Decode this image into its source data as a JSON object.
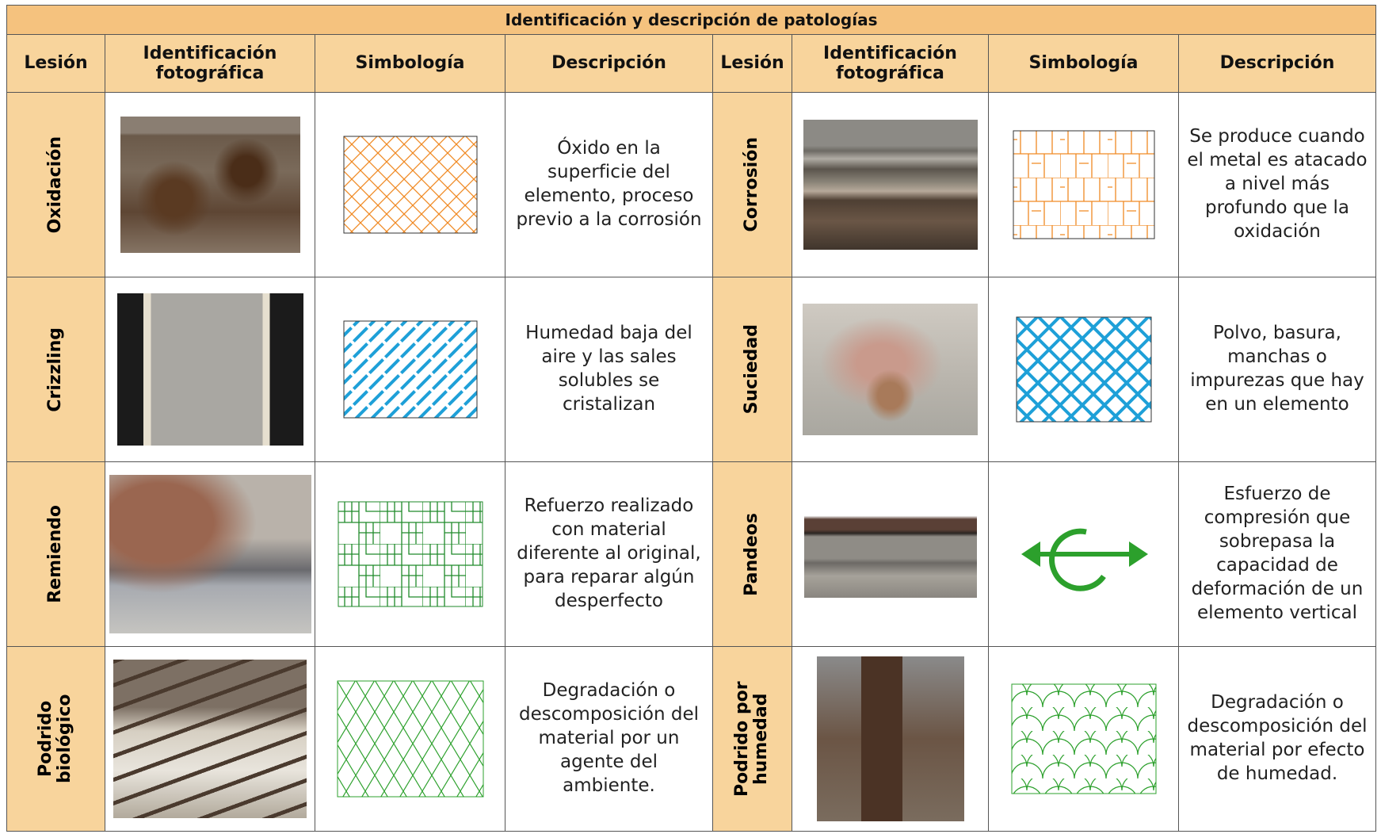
{
  "table": {
    "title": "Identificación y descripción de patologías",
    "headers": [
      "Lesión",
      "Identificación fotográfica",
      "Simbología",
      "Descripción",
      "Lesión",
      "Identificación fotográfica",
      "Simbología",
      "Descripción"
    ],
    "rows": [
      [
        {
          "lesion": "Oxidación",
          "description": "Óxido en la superficie del elemento, proceso previo a la corrosión"
        },
        {
          "lesion": "Corrosión",
          "description": "Se produce cuando el metal es atacado a nivel más profundo que la oxidación"
        }
      ],
      [
        {
          "lesion": "Crizzling",
          "description": "Humedad baja del aire y las sales solubles se cristalizan"
        },
        {
          "lesion": "Suciedad",
          "description": "Polvo, basura, manchas o impurezas que hay en un elemento"
        }
      ],
      [
        {
          "lesion": "Remiendo",
          "description": "Refuerzo realizado con material diferente al original, para reparar algún desperfecto"
        },
        {
          "lesion": "Pandeos",
          "description": "Esfuerzo de compresión que sobrepasa la capacidad de deformación de un elemento vertical"
        }
      ],
      [
        {
          "lesion": "Podrido biológico",
          "description": "Degradación o descomposición del material por un agente del ambiente."
        },
        {
          "lesion": "Podrido por humedad",
          "description": "Degradación o descomposición del material por efecto de humedad."
        }
      ]
    ]
  }
}
